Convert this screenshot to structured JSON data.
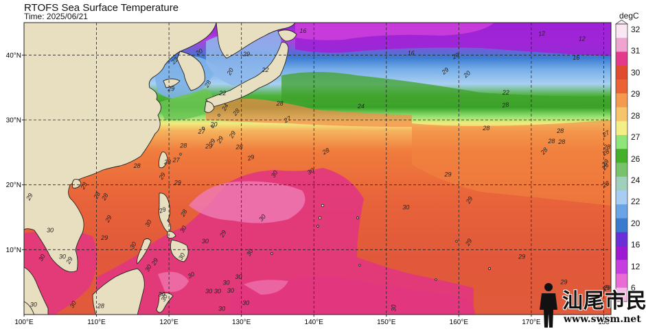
{
  "header": {
    "title": "RTOFS Sea Surface Temperature",
    "time": "Time: 2025/06/21"
  },
  "map": {
    "lon_range": [
      100,
      181
    ],
    "lat_range": [
      0,
      45
    ],
    "x_ticks": [
      "100°E",
      "110°E",
      "120°E",
      "130°E",
      "140°E",
      "150°E",
      "160°E",
      "170°E",
      "180"
    ],
    "y_ticks": [
      "10°N",
      "20°N",
      "30°N",
      "40°N"
    ],
    "grid": "dashed",
    "land_color": "#e8dfc1"
  },
  "colorbar": {
    "unit": "degC",
    "labels": [
      "32",
      "31",
      "30",
      "29",
      "28",
      "27",
      "26",
      "24",
      "22",
      "20",
      "16",
      "12",
      "6"
    ],
    "colors": [
      "#fbe6f4",
      "#f0a3d0",
      "#e33a8c",
      "#e04a2e",
      "#ea6236",
      "#f39a4e",
      "#f6c46d",
      "#f4ee86",
      "#8fe57a",
      "#45b02a",
      "#77c26a",
      "#9fd0bb",
      "#a7cdf3",
      "#6aa4e6",
      "#3a7bd0",
      "#6a2fd6",
      "#9b1ad2",
      "#c63ee0",
      "#ea6bd6",
      "#f7b8e8"
    ]
  },
  "contour_labels": [
    {
      "text": "16",
      "lon": 138.5,
      "lat": 43.4,
      "rot": 0
    },
    {
      "text": "12",
      "lon": 171.5,
      "lat": 43.0,
      "rot": -10
    },
    {
      "text": "12",
      "lon": 177.0,
      "lat": 42.2,
      "rot": 0
    },
    {
      "text": "29",
      "lon": 130.7,
      "lat": 39.8,
      "rot": 0
    },
    {
      "text": "16",
      "lon": 153.4,
      "lat": 40.0,
      "rot": 0
    },
    {
      "text": "16",
      "lon": 176.2,
      "lat": 39.3,
      "rot": 0
    },
    {
      "text": "20",
      "lon": 159.7,
      "lat": 39.6,
      "rot": -30
    },
    {
      "text": "22",
      "lon": 121.0,
      "lat": 38.9,
      "rot": -45
    },
    {
      "text": "20",
      "lon": 124.3,
      "lat": 40.2,
      "rot": -30
    },
    {
      "text": "22",
      "lon": 133.3,
      "lat": 37.4,
      "rot": 0
    },
    {
      "text": "20",
      "lon": 128.7,
      "lat": 37.3,
      "rot": -60
    },
    {
      "text": "28",
      "lon": 125.6,
      "lat": 35.4,
      "rot": -60
    },
    {
      "text": "29",
      "lon": 158.3,
      "lat": 37.3,
      "rot": -40
    },
    {
      "text": "20",
      "lon": 161.3,
      "lat": 36.8,
      "rot": -40
    },
    {
      "text": "22",
      "lon": 166.5,
      "lat": 33.9,
      "rot": 0
    },
    {
      "text": "22",
      "lon": 127.4,
      "lat": 33.8,
      "rot": 0
    },
    {
      "text": "29",
      "lon": 120.3,
      "lat": 34.5,
      "rot": 0
    },
    {
      "text": "24",
      "lon": 128.0,
      "lat": 31.8,
      "rot": -60
    },
    {
      "text": "24",
      "lon": 146.5,
      "lat": 31.8,
      "rot": 0
    },
    {
      "text": "28",
      "lon": 166.5,
      "lat": 32.0,
      "rot": -10
    },
    {
      "text": "28",
      "lon": 135.3,
      "lat": 32.2,
      "rot": 0
    },
    {
      "text": "28",
      "lon": 129.5,
      "lat": 31.0,
      "rot": -50
    },
    {
      "text": "27",
      "lon": 136.5,
      "lat": 29.8,
      "rot": -30
    },
    {
      "text": "20",
      "lon": 126.2,
      "lat": 29.0,
      "rot": 0
    },
    {
      "text": "27",
      "lon": 124.5,
      "lat": 27.9,
      "rot": 0
    },
    {
      "text": "29",
      "lon": 129.0,
      "lat": 27.6,
      "rot": -60
    },
    {
      "text": "28",
      "lon": 163.8,
      "lat": 28.4,
      "rot": 0
    },
    {
      "text": "28",
      "lon": 174.0,
      "lat": 28.0,
      "rot": 0
    },
    {
      "text": "27",
      "lon": 181.0,
      "lat": 27.6,
      "rot": -30
    },
    {
      "text": "29",
      "lon": 127.3,
      "lat": 26.8,
      "rot": -60
    },
    {
      "text": "29",
      "lon": 126.2,
      "lat": 26.4,
      "rot": -60
    },
    {
      "text": "28",
      "lon": 172.8,
      "lat": 26.4,
      "rot": 0
    },
    {
      "text": "28",
      "lon": 174.2,
      "lat": 26.3,
      "rot": 0
    },
    {
      "text": "28",
      "lon": 122.0,
      "lat": 25.7,
      "rot": 0
    },
    {
      "text": "29",
      "lon": 125.5,
      "lat": 25.6,
      "rot": 0
    },
    {
      "text": "28",
      "lon": 129.7,
      "lat": 25.5,
      "rot": 0
    },
    {
      "text": "28",
      "lon": 141.8,
      "lat": 24.9,
      "rot": -30
    },
    {
      "text": "28",
      "lon": 180.7,
      "lat": 25.5,
      "rot": 0
    },
    {
      "text": "28",
      "lon": 172.0,
      "lat": 25.0,
      "rot": -50
    },
    {
      "text": "28",
      "lon": 182.3,
      "lat": 24.7,
      "rot": -30
    },
    {
      "text": "29",
      "lon": 131.4,
      "lat": 23.9,
      "rot": -20
    },
    {
      "text": "28",
      "lon": 119.8,
      "lat": 23.2,
      "rot": 0
    },
    {
      "text": "27",
      "lon": 121.0,
      "lat": 23.5,
      "rot": 0
    },
    {
      "text": "28",
      "lon": 115.6,
      "lat": 22.6,
      "rot": 0
    },
    {
      "text": "29",
      "lon": 181.0,
      "lat": 23.2,
      "rot": -50
    },
    {
      "text": "28",
      "lon": 182.4,
      "lat": 22.6,
      "rot": -50
    },
    {
      "text": "29",
      "lon": 119.3,
      "lat": 21.2,
      "rot": -60
    },
    {
      "text": "30",
      "lon": 134.8,
      "lat": 21.5,
      "rot": -60
    },
    {
      "text": "30",
      "lon": 139.7,
      "lat": 21.8,
      "rot": -30
    },
    {
      "text": "29",
      "lon": 158.5,
      "lat": 21.3,
      "rot": 0
    },
    {
      "text": "28",
      "lon": 182.2,
      "lat": 19.8,
      "rot": -30
    },
    {
      "text": "29",
      "lon": 121.2,
      "lat": 20.0,
      "rot": 0
    },
    {
      "text": "23",
      "lon": 108.5,
      "lat": 19.7,
      "rot": -60
    },
    {
      "text": "28",
      "lon": 110.3,
      "lat": 18.2,
      "rot": -60
    },
    {
      "text": "28",
      "lon": 111.4,
      "lat": 18.0,
      "rot": -60
    },
    {
      "text": "29",
      "lon": 101.0,
      "lat": 18.0,
      "rot": -60
    },
    {
      "text": "29",
      "lon": 161.7,
      "lat": 17.5,
      "rot": -60
    },
    {
      "text": "29",
      "lon": 119.2,
      "lat": 15.8,
      "rot": -20
    },
    {
      "text": "28",
      "lon": 122.3,
      "lat": 15.5,
      "rot": -60
    },
    {
      "text": "30",
      "lon": 152.7,
      "lat": 16.2,
      "rot": 0
    },
    {
      "text": "30",
      "lon": 133.1,
      "lat": 14.7,
      "rot": -50
    },
    {
      "text": "29",
      "lon": 111.9,
      "lat": 14.6,
      "rot": -60
    },
    {
      "text": "30",
      "lon": 117.4,
      "lat": 13.9,
      "rot": -60
    },
    {
      "text": "30",
      "lon": 122.2,
      "lat": 13.0,
      "rot": -60
    },
    {
      "text": "29",
      "lon": 127.7,
      "lat": 12.3,
      "rot": -60
    },
    {
      "text": "30",
      "lon": 103.6,
      "lat": 12.7,
      "rot": 0
    },
    {
      "text": "29",
      "lon": 111.1,
      "lat": 11.5,
      "rot": 0
    },
    {
      "text": "30",
      "lon": 125.0,
      "lat": 11.0,
      "rot": 0
    },
    {
      "text": "29",
      "lon": 161.6,
      "lat": 11.0,
      "rot": -60
    },
    {
      "text": "30",
      "lon": 115.3,
      "lat": 10.5,
      "rot": -60
    },
    {
      "text": "30",
      "lon": 102.7,
      "lat": 8.6,
      "rot": -60
    },
    {
      "text": "30",
      "lon": 105.3,
      "lat": 8.6,
      "rot": 0
    },
    {
      "text": "30",
      "lon": 122.0,
      "lat": 8.8,
      "rot": -60
    },
    {
      "text": "30",
      "lon": 131.4,
      "lat": 9.4,
      "rot": -60
    },
    {
      "text": "29",
      "lon": 106.5,
      "lat": 8.2,
      "rot": -60
    },
    {
      "text": "29",
      "lon": 118.3,
      "lat": 8.0,
      "rot": -60
    },
    {
      "text": "29",
      "lon": 168.7,
      "lat": 8.6,
      "rot": 0
    },
    {
      "text": "30",
      "lon": 117.4,
      "lat": 7.0,
      "rot": -60
    },
    {
      "text": "30",
      "lon": 123.2,
      "lat": 5.8,
      "rot": -30
    },
    {
      "text": "30",
      "lon": 127.9,
      "lat": 4.6,
      "rot": 0
    },
    {
      "text": "30",
      "lon": 129.6,
      "lat": 5.5,
      "rot": 0
    },
    {
      "text": "29",
      "lon": 174.5,
      "lat": 4.7,
      "rot": 0
    },
    {
      "text": "29",
      "lon": 181.1,
      "lat": 3.8,
      "rot": 0
    },
    {
      "text": "29",
      "lon": 183.4,
      "lat": 3.8,
      "rot": -30
    },
    {
      "text": "30",
      "lon": 126.7,
      "lat": 3.3,
      "rot": 0
    },
    {
      "text": "30",
      "lon": 128.5,
      "lat": 3.4,
      "rot": 0
    },
    {
      "text": "30",
      "lon": 119.0,
      "lat": 2.8,
      "rot": 0
    },
    {
      "text": "30",
      "lon": 125.5,
      "lat": 3.3,
      "rot": 0
    },
    {
      "text": "30",
      "lon": 119.6,
      "lat": 2.4,
      "rot": -60
    },
    {
      "text": "30",
      "lon": 101.3,
      "lat": 1.2,
      "rot": 0
    },
    {
      "text": "28",
      "lon": 110.6,
      "lat": 1.0,
      "rot": 0
    },
    {
      "text": "30",
      "lon": 130.6,
      "lat": 1.5,
      "rot": 0
    },
    {
      "text": "30",
      "lon": 127.3,
      "lat": 0.6,
      "rot": 0
    },
    {
      "text": "30",
      "lon": 107.0,
      "lat": 1.4,
      "rot": -60
    },
    {
      "text": "30",
      "lon": 151.3,
      "lat": 1.0,
      "rot": -90
    }
  ],
  "watermark": {
    "chinese": "汕尾市民网",
    "url": "www.swsm.net"
  }
}
